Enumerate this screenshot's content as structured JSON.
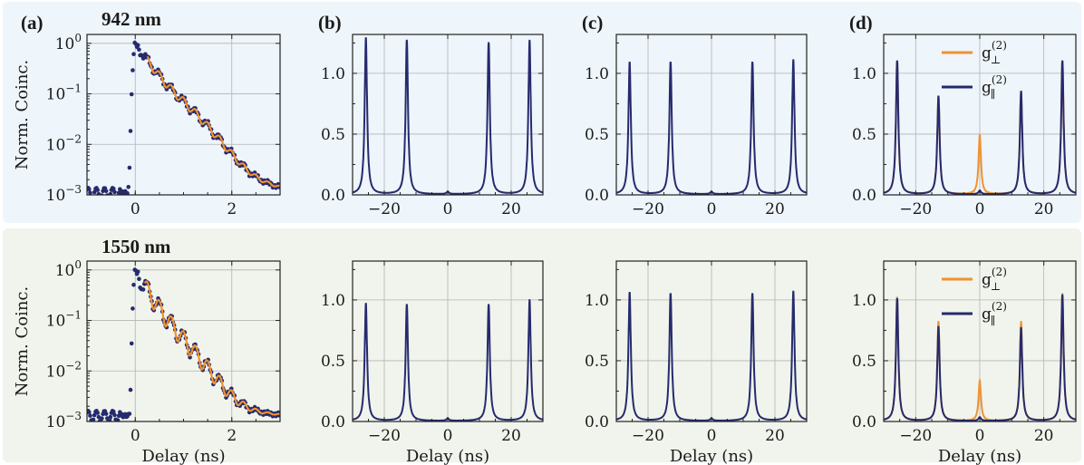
{
  "colors": {
    "blue": "#262a6e",
    "orange": "#f0922f",
    "grid": "#b4b4b4",
    "row1_bg": "#eef5fb",
    "row2_bg": "#f0f4ec"
  },
  "row_labels": [
    "942 nm",
    "1550 nm"
  ],
  "legend": {
    "perp": {
      "base": "g",
      "sup": "(2)",
      "sub": "⊥"
    },
    "par": {
      "base": "g",
      "sup": "(2)",
      "sub": "∥"
    }
  },
  "chart_data": [
    {
      "panel": "(a)",
      "row": 1,
      "type": "line",
      "scale": "log",
      "xlabel": "",
      "ylabel": "Norm. Coinc.",
      "xlim": [
        -1.0,
        3.0
      ],
      "ylim": [
        0.001,
        1.5
      ],
      "xticks": [
        0,
        2
      ],
      "yticks": [
        "10^0",
        "10^-1",
        "10^-2",
        "10^-3"
      ],
      "grid": true,
      "series": [
        {
          "color": "blue",
          "style": "markers",
          "model": "decay",
          "rise_ns": 0.06,
          "decay_ns": 0.38,
          "background": 0.0011,
          "ripple": 0.18,
          "ripple_period_ns": 0.25
        },
        {
          "color": "orange",
          "style": "fit",
          "model": "decay",
          "start_ns": 0.25,
          "decay_ns": 0.38,
          "background": 0.0011,
          "ripple": 0.18,
          "ripple_period_ns": 0.25
        }
      ]
    },
    {
      "panel": "(b)",
      "row": 1,
      "type": "line",
      "xlabel": "",
      "ylabel": "",
      "xlim": [
        -30,
        30
      ],
      "ylim": [
        0.0,
        1.32
      ],
      "xticks": [
        -20,
        0,
        20
      ],
      "yticks": [
        0.0,
        0.5,
        1.0
      ],
      "grid": true,
      "peaks_x": [
        -25.8,
        -12.9,
        0,
        12.9,
        25.8
      ],
      "series": [
        {
          "color": "blue",
          "peaks": [
            1.29,
            1.27,
            0.02,
            1.25,
            1.27
          ]
        }
      ]
    },
    {
      "panel": "(c)",
      "row": 1,
      "type": "line",
      "xlabel": "",
      "ylabel": "",
      "xlim": [
        -30,
        30
      ],
      "ylim": [
        0.0,
        1.32
      ],
      "xticks": [
        -20,
        0,
        20
      ],
      "yticks": [
        0.0,
        0.5,
        1.0
      ],
      "grid": true,
      "peaks_x": [
        -25.8,
        -12.9,
        0,
        12.9,
        25.8
      ],
      "series": [
        {
          "color": "blue",
          "peaks": [
            1.09,
            1.09,
            0.02,
            1.09,
            1.11
          ]
        }
      ]
    },
    {
      "panel": "(d)",
      "row": 1,
      "type": "line",
      "xlabel": "",
      "ylabel": "",
      "xlim": [
        -30,
        30
      ],
      "ylim": [
        0.0,
        1.32
      ],
      "xticks": [
        -20,
        0,
        20
      ],
      "yticks": [
        0.0,
        0.5,
        1.0
      ],
      "grid": true,
      "legend": "top-right",
      "peaks_x": [
        -25.8,
        -12.9,
        0,
        12.9,
        25.8
      ],
      "series": [
        {
          "legend_key": "perp",
          "color": "orange",
          "peaks": [
            1.1,
            0.81,
            0.49,
            0.85,
            1.1
          ]
        },
        {
          "legend_key": "par",
          "color": "blue",
          "peaks": [
            1.1,
            0.81,
            0.03,
            0.85,
            1.1
          ]
        }
      ]
    },
    {
      "panel": "",
      "row": 2,
      "type": "line",
      "scale": "log",
      "xlabel": "Delay (ns)",
      "ylabel": "Norm. Coinc.",
      "xlim": [
        -1.0,
        3.0
      ],
      "ylim": [
        0.001,
        1.5
      ],
      "xticks": [
        0,
        2
      ],
      "yticks": [
        "10^0",
        "10^-1",
        "10^-2",
        "10^-3"
      ],
      "grid": true,
      "series": [
        {
          "color": "blue",
          "style": "markers",
          "model": "decay",
          "rise_ns": 0.05,
          "decay_ns": 0.32,
          "background": 0.0013,
          "ripple": 0.38,
          "ripple_period_ns": 0.25,
          "precursor": true
        },
        {
          "color": "orange",
          "style": "fit",
          "model": "decay",
          "start_ns": 0.2,
          "decay_ns": 0.32,
          "background": 0.0013,
          "ripple": 0.38,
          "ripple_period_ns": 0.25
        }
      ]
    },
    {
      "panel": "",
      "row": 2,
      "type": "line",
      "xlabel": "Delay (ns)",
      "ylabel": "",
      "xlim": [
        -30,
        30
      ],
      "ylim": [
        0.0,
        1.32
      ],
      "xticks": [
        -20,
        0,
        20
      ],
      "yticks": [
        0.0,
        0.5,
        1.0
      ],
      "grid": true,
      "peaks_x": [
        -25.8,
        -12.9,
        0,
        12.9,
        25.8
      ],
      "series": [
        {
          "color": "blue",
          "peaks": [
            0.97,
            0.96,
            0.02,
            0.96,
            1.0
          ]
        }
      ]
    },
    {
      "panel": "",
      "row": 2,
      "type": "line",
      "xlabel": "Delay (ns)",
      "ylabel": "",
      "xlim": [
        -30,
        30
      ],
      "ylim": [
        0.0,
        1.32
      ],
      "xticks": [
        -20,
        0,
        20
      ],
      "yticks": [
        0.0,
        0.5,
        1.0
      ],
      "grid": true,
      "peaks_x": [
        -25.8,
        -12.9,
        0,
        12.9,
        25.8
      ],
      "series": [
        {
          "color": "blue",
          "peaks": [
            1.06,
            1.05,
            0.02,
            1.05,
            1.07
          ]
        }
      ]
    },
    {
      "panel": "",
      "row": 2,
      "type": "line",
      "xlabel": "Delay (ns)",
      "ylabel": "",
      "xlim": [
        -30,
        30
      ],
      "ylim": [
        0.0,
        1.32
      ],
      "xticks": [
        -20,
        0,
        20
      ],
      "yticks": [
        0.0,
        0.5,
        1.0
      ],
      "grid": true,
      "legend": "top-right",
      "peaks_x": [
        -25.8,
        -12.9,
        0,
        12.9,
        25.8
      ],
      "series": [
        {
          "legend_key": "perp",
          "color": "orange",
          "peaks": [
            1.02,
            0.82,
            0.33,
            0.82,
            1.05
          ]
        },
        {
          "legend_key": "par",
          "color": "blue",
          "peaks": [
            1.01,
            0.78,
            0.03,
            0.77,
            1.04
          ]
        }
      ]
    }
  ]
}
